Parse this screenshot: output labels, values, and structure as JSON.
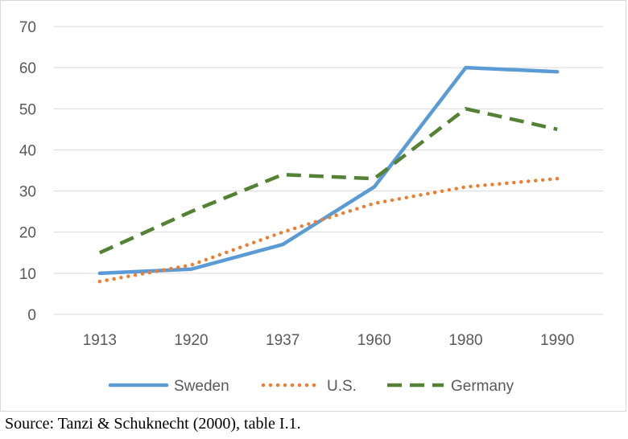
{
  "chart_data": {
    "type": "line",
    "title": "",
    "xlabel": "",
    "ylabel": "",
    "categories": [
      "1913",
      "1920",
      "1937",
      "1960",
      "1980",
      "1990"
    ],
    "ylim": [
      0,
      70
    ],
    "yticks": [
      0,
      10,
      20,
      30,
      40,
      50,
      60,
      70
    ],
    "grid": true,
    "legend_position": "bottom",
    "series": [
      {
        "name": "Sweden",
        "values": [
          10,
          11,
          17,
          31,
          60,
          59
        ],
        "color": "#5b9bd5",
        "style": "solid"
      },
      {
        "name": "U.S.",
        "values": [
          8,
          12,
          20,
          27,
          31,
          33
        ],
        "color": "#ed7d31",
        "style": "dotted"
      },
      {
        "name": "Germany",
        "values": [
          15,
          25,
          34,
          33,
          50,
          45
        ],
        "color": "#548235",
        "style": "dashed"
      }
    ]
  },
  "source_note": "Source: Tanzi & Schuknecht (2000), table I.1."
}
